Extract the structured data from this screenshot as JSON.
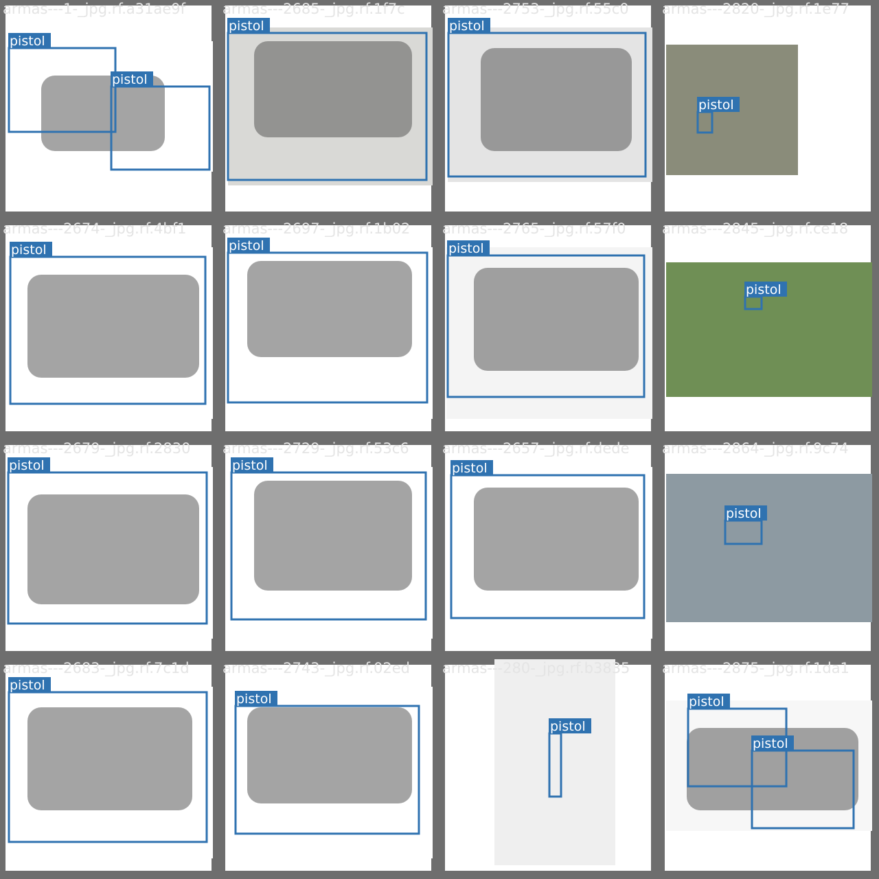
{
  "tiles": [
    {
      "title": "armas---1-_jpg.rf.a31ae9f",
      "detections": [
        {
          "label": "pistol"
        },
        {
          "label": "pistol"
        }
      ]
    },
    {
      "title": "armas---2685-_jpg.rf.1f7c",
      "detections": [
        {
          "label": "pistol"
        }
      ]
    },
    {
      "title": "armas---2753-_jpg.rf.55c0",
      "detections": [
        {
          "label": "pistol"
        }
      ]
    },
    {
      "title": "armas---2820-_jpg.rf.1e77",
      "detections": [
        {
          "label": "pistol"
        }
      ]
    },
    {
      "title": "armas---2674-_jpg.rf.4bf1",
      "detections": [
        {
          "label": "pistol"
        }
      ]
    },
    {
      "title": "armas---2697-_jpg.rf.1b02",
      "detections": [
        {
          "label": "pistol"
        }
      ]
    },
    {
      "title": "armas---2765-_jpg.rf.57f0",
      "detections": [
        {
          "label": "pistol"
        }
      ]
    },
    {
      "title": "armas---2845-_jpg.rf.ce18",
      "detections": [
        {
          "label": "pistol"
        }
      ]
    },
    {
      "title": "armas---2679-_jpg.rf.2830",
      "detections": [
        {
          "label": "pistol"
        }
      ]
    },
    {
      "title": "armas---2729-_jpg.rf.53c6",
      "detections": [
        {
          "label": "pistol"
        }
      ]
    },
    {
      "title": "armas---2657-_jpg.rf.dede",
      "detections": [
        {
          "label": "pistol"
        }
      ]
    },
    {
      "title": "armas---2864-_jpg.rf.9c74",
      "detections": [
        {
          "label": "pistol"
        }
      ]
    },
    {
      "title": "armas---2683-_jpg.rf.7c1d",
      "detections": [
        {
          "label": "pistol"
        }
      ]
    },
    {
      "title": "armas---2743-_jpg.rf.02ed",
      "detections": [
        {
          "label": "pistol"
        }
      ]
    },
    {
      "title": "armas---280-_jpg.rf.b3835",
      "detections": [
        {
          "label": "pistol"
        }
      ]
    },
    {
      "title": "armas---2875-_jpg.rf.1da1",
      "detections": [
        {
          "label": "pistol"
        },
        {
          "label": "pistol"
        }
      ]
    }
  ]
}
